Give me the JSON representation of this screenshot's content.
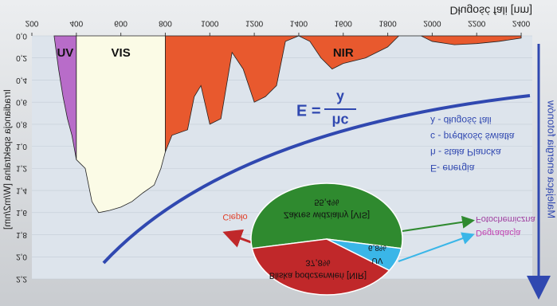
{
  "chart_data": [
    {
      "type": "area",
      "x_label": "Długość fali [nm]",
      "y_label": "Irradiancja spektralna [W/m2/nm]",
      "xlim": [
        200,
        2450
      ],
      "xticks": [
        200,
        400,
        600,
        800,
        1000,
        1200,
        1400,
        1600,
        1800,
        2000,
        2200,
        2400
      ],
      "ylim": [
        0,
        2.2
      ],
      "yticks": [
        {
          "value": 0,
          "label": "0,0"
        },
        {
          "value": 0.2,
          "label": "0,2"
        },
        {
          "value": 0.4,
          "label": "0,4"
        },
        {
          "value": 0.6,
          "label": "0,6"
        },
        {
          "value": 0.8,
          "label": "0,8"
        },
        {
          "value": 1.0,
          "label": "1,0"
        },
        {
          "value": 1.2,
          "label": "1,2"
        },
        {
          "value": 1.4,
          "label": "1,4"
        },
        {
          "value": 1.6,
          "label": "1,6"
        },
        {
          "value": 1.8,
          "label": "1,8"
        },
        {
          "value": 2.0,
          "label": "2,0"
        },
        {
          "value": 2.2,
          "label": "2,2"
        }
      ],
      "series": [
        {
          "name": "UV",
          "color": "#b86cc9",
          "x": [
            300,
            320,
            340,
            360,
            380,
            400
          ],
          "values": [
            0.0,
            0.3,
            0.55,
            0.75,
            0.9,
            1.12
          ]
        },
        {
          "name": "VIS",
          "color": "#fbfbe6",
          "x": [
            400,
            440,
            470,
            500,
            550,
            600,
            650,
            700,
            750,
            780,
            800
          ],
          "values": [
            1.12,
            1.2,
            1.5,
            1.6,
            1.58,
            1.55,
            1.5,
            1.42,
            1.35,
            1.2,
            1.05
          ]
        },
        {
          "name": "NIR",
          "color": "#e8592e",
          "x": [
            800,
            830,
            900,
            930,
            960,
            1000,
            1050,
            1100,
            1150,
            1200,
            1250,
            1300,
            1340,
            1400,
            1450,
            1500,
            1550,
            1600,
            1700,
            1800,
            1850,
            1950,
            2000,
            2100,
            2200,
            2300,
            2400
          ],
          "values": [
            1.05,
            0.9,
            0.85,
            0.55,
            0.45,
            0.8,
            0.75,
            0.15,
            0.3,
            0.6,
            0.55,
            0.45,
            0.05,
            0.0,
            0.05,
            0.2,
            0.3,
            0.25,
            0.2,
            0.1,
            0.0,
            0.0,
            0.05,
            0.08,
            0.07,
            0.05,
            0.02
          ]
        }
      ],
      "annotations": {
        "equation_lhs": "E =",
        "numerator": "hc",
        "denominator": "λ",
        "legend": [
          "E- energia",
          "h - stała Plancka",
          "c - prędkość światła",
          "λ - długość fali"
        ],
        "arrow_label": "Malejąca energia fotonów"
      }
    },
    {
      "type": "pie",
      "categories": [
        "Zakres widzialny [VIS]",
        "Bliska podczerwień [NIR]",
        "UV"
      ],
      "values": [
        55.4,
        37.8,
        6.8
      ],
      "value_labels": [
        "55,4%",
        "37,8%",
        "6,8%"
      ],
      "colors": [
        "#2f8a2f",
        "#c0282a",
        "#3ab6e8"
      ],
      "effects": [
        "Fotochemiczna",
        "Ciepło",
        "Degradacja"
      ]
    }
  ]
}
